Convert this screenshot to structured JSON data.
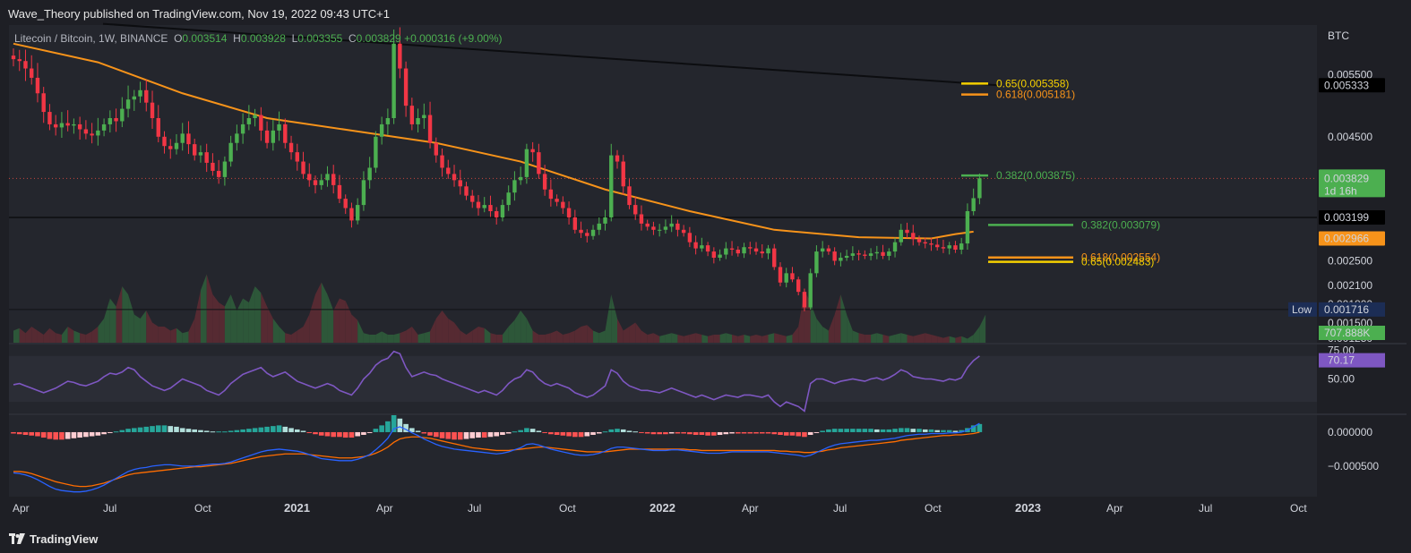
{
  "publisher_line": "Wave_Theory published on TradingView.com, Nov 19, 2022 09:43 UTC+1",
  "footer": {
    "brand": "TradingView"
  },
  "legend": {
    "symbol": "Litecoin / Bitcoin, 1W, BINANCE",
    "open_label": "O",
    "open": "0.003514",
    "high_label": "H",
    "high": "0.003928",
    "low_label": "L",
    "low": "0.003355",
    "close_label": "C",
    "close": "0.003829",
    "change": "+0.000316 (+9.00%)"
  },
  "colors": {
    "background": "#1e1f25",
    "up": "#4caf50",
    "down": "#f23645",
    "ma": "#f7931a",
    "fib_gold": "#f5d000",
    "fib_orange": "#f7931a",
    "fib_green": "#4caf50",
    "rsi": "#7e57c2",
    "macd_line": "#2962ff",
    "signal_line": "#ff6d00"
  },
  "chart_data": [
    {
      "type": "candlestick",
      "name": "price",
      "x_tick_labels": [
        "Apr",
        "Jul",
        "Oct",
        "2021",
        "Apr",
        "Jul",
        "Oct",
        "2022",
        "Apr",
        "Jul",
        "Oct",
        "2023",
        "Apr",
        "Jul",
        "Oct"
      ],
      "x_tick_bold": [
        false,
        false,
        false,
        true,
        false,
        false,
        false,
        true,
        false,
        false,
        false,
        true,
        false,
        false,
        false
      ],
      "y_unit": "BTC",
      "y_tick_labels": [
        "0.005500",
        "0.004500",
        "0.002500",
        "0.002100",
        "0.001800",
        "0.001500",
        "0.001250"
      ],
      "y_tick_values": [
        0.0055,
        0.0045,
        0.0025,
        0.0021,
        0.0018,
        0.0015,
        0.00125
      ],
      "ylim": [
        0.00118,
        0.0063
      ],
      "weekly_closes": [
        0.00575,
        0.00572,
        0.0056,
        0.00545,
        0.0052,
        0.0049,
        0.0047,
        0.00465,
        0.00472,
        0.00468,
        0.0047,
        0.00462,
        0.00455,
        0.00452,
        0.0046,
        0.0047,
        0.0048,
        0.00475,
        0.00495,
        0.0051,
        0.00515,
        0.00525,
        0.00505,
        0.0048,
        0.0045,
        0.00435,
        0.0043,
        0.0044,
        0.00455,
        0.00438,
        0.0042,
        0.00425,
        0.00408,
        0.00395,
        0.00385,
        0.0041,
        0.0044,
        0.00455,
        0.0047,
        0.0048,
        0.00485,
        0.0046,
        0.0044,
        0.0046,
        0.0047,
        0.0044,
        0.00425,
        0.0041,
        0.0039,
        0.0038,
        0.00372,
        0.0038,
        0.0039,
        0.00372,
        0.0035,
        0.00335,
        0.00315,
        0.0034,
        0.0038,
        0.004,
        0.0045,
        0.0047,
        0.0048,
        0.006,
        0.0056,
        0.005,
        0.0047,
        0.0048,
        0.00485,
        0.0044,
        0.0042,
        0.004,
        0.0039,
        0.0038,
        0.0037,
        0.00355,
        0.00345,
        0.00335,
        0.0034,
        0.0033,
        0.0032,
        0.0034,
        0.0036,
        0.0038,
        0.00385,
        0.0043,
        0.00425,
        0.0039,
        0.00365,
        0.0035,
        0.00345,
        0.00335,
        0.0032,
        0.003,
        0.00295,
        0.0029,
        0.003,
        0.0031,
        0.0032,
        0.0042,
        0.0041,
        0.0037,
        0.0034,
        0.00325,
        0.0031,
        0.00305,
        0.003,
        0.003,
        0.00305,
        0.0031,
        0.003,
        0.00295,
        0.0028,
        0.0027,
        0.00275,
        0.00265,
        0.00255,
        0.0026,
        0.0027,
        0.00268,
        0.00262,
        0.00272,
        0.0027,
        0.00265,
        0.00262,
        0.0027,
        0.0024,
        0.00215,
        0.0023,
        0.0022,
        0.002,
        0.00175,
        0.0023,
        0.00265,
        0.0027,
        0.00265,
        0.0025,
        0.00255,
        0.00258,
        0.00262,
        0.0026,
        0.00258,
        0.00262,
        0.00264,
        0.00258,
        0.00265,
        0.0028,
        0.003,
        0.00295,
        0.00285,
        0.0028,
        0.00278,
        0.00276,
        0.00272,
        0.0027,
        0.00275,
        0.00268,
        0.00278,
        0.0033,
        0.00351,
        0.00383
      ],
      "moving_average": {
        "label_value": "0.002966",
        "points": [
          [
            0,
            0.006
          ],
          [
            14,
            0.0057
          ],
          [
            28,
            0.0052
          ],
          [
            42,
            0.0048
          ],
          [
            56,
            0.0046
          ],
          [
            70,
            0.0044
          ],
          [
            84,
            0.0041
          ],
          [
            98,
            0.00365
          ],
          [
            112,
            0.0033
          ],
          [
            126,
            0.003
          ],
          [
            140,
            0.00288
          ],
          [
            152,
            0.00286
          ],
          [
            156,
            0.00293
          ],
          [
            159,
            0.00297
          ]
        ]
      },
      "long_trendline": {
        "from": [
          0,
          0.0064
        ],
        "to": [
          163,
          0.00533
        ],
        "label_value": "0.005333"
      },
      "horizontal_line": {
        "value": 0.003199,
        "label_value": "0.003199"
      },
      "current_price_line": {
        "value": 0.003829,
        "label_value": "0.003829",
        "countdown": "1d 16h"
      },
      "low_marker": {
        "label": "Low",
        "value": 0.001716,
        "label_value": "0.001716"
      },
      "fib_levels": [
        {
          "ratio": "0.65",
          "value": 0.005358,
          "text": "0.65(0.005358)",
          "color": "#f5d000"
        },
        {
          "ratio": "0.618",
          "value": 0.005181,
          "text": "0.618(0.005181)",
          "color": "#f7931a"
        },
        {
          "ratio": "0.382",
          "value": 0.003875,
          "text": "0.382(0.003875)",
          "color": "#4caf50"
        },
        {
          "ratio": "0.382",
          "value": 0.003079,
          "text": "0.382(0.003079)",
          "color": "#4caf50"
        },
        {
          "ratio": "0.618",
          "value": 0.002554,
          "text": "0.618(0.002554)",
          "color": "#f7931a"
        },
        {
          "ratio": "0.65",
          "value": 0.002483,
          "text": "0.65(0.002483)",
          "color": "#f5d000"
        }
      ],
      "grid": false
    },
    {
      "type": "area",
      "name": "volume",
      "current_label": "707.888K",
      "relative_values": [
        0.15,
        0.18,
        0.12,
        0.2,
        0.15,
        0.1,
        0.18,
        0.12,
        0.1,
        0.2,
        0.15,
        0.12,
        0.1,
        0.14,
        0.2,
        0.3,
        0.55,
        0.45,
        0.7,
        0.6,
        0.35,
        0.3,
        0.4,
        0.25,
        0.2,
        0.2,
        0.15,
        0.18,
        0.12,
        0.14,
        0.3,
        0.65,
        0.85,
        0.6,
        0.5,
        0.45,
        0.6,
        0.4,
        0.55,
        0.5,
        0.7,
        0.62,
        0.45,
        0.3,
        0.2,
        0.12,
        0.1,
        0.15,
        0.2,
        0.35,
        0.6,
        0.75,
        0.6,
        0.4,
        0.55,
        0.52,
        0.35,
        0.28,
        0.12,
        0.1,
        0.1,
        0.14,
        0.1,
        0.1,
        0.12,
        0.15,
        0.2,
        0.1,
        0.12,
        0.14,
        0.3,
        0.4,
        0.3,
        0.25,
        0.15,
        0.1,
        0.15,
        0.2,
        0.18,
        0.12,
        0.1,
        0.1,
        0.2,
        0.28,
        0.4,
        0.3,
        0.15,
        0.1,
        0.1,
        0.12,
        0.15,
        0.1,
        0.12,
        0.15,
        0.2,
        0.22,
        0.15,
        0.12,
        0.15,
        0.6,
        0.3,
        0.15,
        0.2,
        0.25,
        0.15,
        0.1,
        0.12,
        0.08,
        0.1,
        0.12,
        0.1,
        0.08,
        0.1,
        0.12,
        0.1,
        0.08,
        0.1,
        0.1,
        0.12,
        0.1,
        0.08,
        0.1,
        0.08,
        0.1,
        0.08,
        0.1,
        0.12,
        0.1,
        0.08,
        0.1,
        0.2,
        0.65,
        0.5,
        0.3,
        0.2,
        0.15,
        0.35,
        0.6,
        0.35,
        0.15,
        0.12,
        0.1,
        0.1,
        0.12,
        0.1,
        0.08,
        0.1,
        0.12,
        0.1,
        0.08,
        0.1,
        0.12,
        0.1,
        0.08,
        0.06,
        0.08,
        0.06,
        0.08,
        0.05,
        0.1,
        0.2,
        0.35
      ]
    },
    {
      "type": "line",
      "name": "rsi",
      "y_tick_labels": [
        "75.00",
        "50.00"
      ],
      "y_tick_values": [
        75,
        50
      ],
      "ylim": [
        20,
        80
      ],
      "current_label": "70.17",
      "values": [
        45,
        46,
        44,
        42,
        40,
        38,
        40,
        42,
        45,
        48,
        47,
        45,
        44,
        46,
        48,
        52,
        55,
        54,
        56,
        60,
        58,
        52,
        48,
        44,
        42,
        40,
        42,
        46,
        50,
        48,
        46,
        44,
        40,
        38,
        36,
        40,
        46,
        50,
        54,
        56,
        58,
        60,
        55,
        52,
        54,
        56,
        52,
        48,
        46,
        44,
        42,
        44,
        46,
        44,
        40,
        38,
        36,
        42,
        50,
        55,
        62,
        66,
        68,
        74,
        72,
        60,
        52,
        54,
        56,
        54,
        53,
        50,
        48,
        46,
        44,
        42,
        40,
        38,
        40,
        38,
        36,
        40,
        46,
        50,
        52,
        58,
        56,
        50,
        46,
        44,
        46,
        44,
        42,
        38,
        36,
        34,
        36,
        40,
        44,
        58,
        55,
        48,
        44,
        42,
        40,
        40,
        39,
        38,
        40,
        42,
        40,
        38,
        36,
        34,
        36,
        34,
        32,
        34,
        36,
        35,
        34,
        36,
        36,
        35,
        34,
        36,
        30,
        26,
        30,
        28,
        26,
        22,
        46,
        50,
        50,
        48,
        46,
        48,
        49,
        50,
        49,
        48,
        50,
        51,
        49,
        51,
        54,
        58,
        56,
        52,
        51,
        50,
        50,
        49,
        48,
        50,
        49,
        51,
        60,
        66,
        70
      ]
    },
    {
      "type": "bar+line",
      "name": "macd",
      "y_tick_labels": [
        "0.000000",
        "−0.000500"
      ],
      "y_tick_values": [
        0,
        -0.0005
      ],
      "ylim": [
        -0.00095,
        0.00025
      ],
      "histogram": [
        -2e-05,
        -3e-05,
        -4e-05,
        -5e-05,
        -6e-05,
        -8e-05,
        -0.0001,
        -0.00011,
        -0.00011,
        -0.0001,
        -9e-05,
        -8e-05,
        -7e-05,
        -6e-05,
        -5e-05,
        -3e-05,
        -1e-05,
        1e-05,
        3e-05,
        5e-05,
        6e-05,
        7e-05,
        8e-05,
        9e-05,
        0.0001,
        0.0001,
        9e-05,
        8e-05,
        6e-05,
        5e-05,
        4e-05,
        3e-05,
        2e-05,
        1e-05,
        1e-05,
        1e-05,
        2e-05,
        3e-05,
        4e-05,
        5e-05,
        6e-05,
        7e-05,
        8e-05,
        9e-05,
        0.0001,
        8e-05,
        6e-05,
        4e-05,
        2e-05,
        -1e-05,
        -3e-05,
        -5e-05,
        -6e-05,
        -7e-05,
        -7e-05,
        -8e-05,
        -8e-05,
        -6e-05,
        -4e-05,
        -1e-05,
        5e-05,
        0.0001,
        0.00016,
        0.00025,
        0.0002,
        0.00012,
        6e-05,
        2e-05,
        -2e-05,
        -5e-05,
        -7e-05,
        -9e-05,
        -0.0001,
        -0.00011,
        -0.00011,
        -0.0001,
        -9e-05,
        -8e-05,
        -8e-05,
        -7e-05,
        -6e-05,
        -4e-05,
        -2e-05,
        1e-05,
        3e-05,
        6e-05,
        5e-05,
        2e-05,
        -1e-05,
        -3e-05,
        -4e-05,
        -5e-05,
        -6e-05,
        -7e-05,
        -7e-05,
        -6e-05,
        -4e-05,
        -2e-05,
        1e-05,
        4e-05,
        5e-05,
        4e-05,
        2e-05,
        1e-05,
        -1e-05,
        -2e-05,
        -3e-05,
        -3e-05,
        -3e-05,
        -2e-05,
        -2e-05,
        -2e-05,
        -3e-05,
        -4e-05,
        -4e-05,
        -5e-05,
        -5e-05,
        -4e-05,
        -3e-05,
        -2e-05,
        -2e-05,
        -2e-05,
        -2e-05,
        -2e-05,
        -2e-05,
        -2e-05,
        -3e-05,
        -4e-05,
        -5e-05,
        -5e-05,
        -6e-05,
        -7e-05,
        -4e-05,
        -1e-05,
        2e-05,
        4e-05,
        5e-05,
        5e-05,
        5e-05,
        5e-05,
        5e-05,
        5e-05,
        5e-05,
        4e-05,
        4e-05,
        4e-05,
        5e-05,
        6e-05,
        6e-05,
        5e-05,
        5e-05,
        4e-05,
        4e-05,
        3e-05,
        3e-05,
        3e-05,
        2e-05,
        3e-05,
        6e-05,
        0.0001,
        0.00012
      ],
      "macd_line": [
        -0.0006,
        -0.00061,
        -0.00063,
        -0.00066,
        -0.0007,
        -0.00075,
        -0.0008,
        -0.00084,
        -0.00086,
        -0.00087,
        -0.00088,
        -0.00088,
        -0.00087,
        -0.00085,
        -0.00082,
        -0.00078,
        -0.00073,
        -0.00068,
        -0.00063,
        -0.00058,
        -0.00055,
        -0.00053,
        -0.00052,
        -0.0005,
        -0.00049,
        -0.00048,
        -0.00048,
        -0.00049,
        -0.0005,
        -0.0005,
        -0.0005,
        -0.00049,
        -0.00048,
        -0.00047,
        -0.00047,
        -0.00046,
        -0.00044,
        -0.00041,
        -0.00038,
        -0.00035,
        -0.00032,
        -0.00029,
        -0.00027,
        -0.00026,
        -0.00025,
        -0.00026,
        -0.00027,
        -0.00028,
        -0.0003,
        -0.00033,
        -0.00036,
        -0.00039,
        -0.0004,
        -0.00041,
        -0.00042,
        -0.00042,
        -0.00042,
        -0.0004,
        -0.00037,
        -0.00033,
        -0.00026,
        -0.00018,
        -9e-05,
        5e-05,
        8e-05,
        4e-05,
        -1e-05,
        -5e-05,
        -0.0001,
        -0.00014,
        -0.00018,
        -0.00021,
        -0.00023,
        -0.00025,
        -0.00026,
        -0.00027,
        -0.00028,
        -0.00029,
        -0.0003,
        -0.00031,
        -0.00032,
        -0.00031,
        -0.00029,
        -0.00026,
        -0.00023,
        -0.00018,
        -0.00017,
        -0.00019,
        -0.00022,
        -0.00025,
        -0.00027,
        -0.00029,
        -0.00031,
        -0.00033,
        -0.00034,
        -0.00034,
        -0.00033,
        -0.00031,
        -0.00028,
        -0.00024,
        -0.00022,
        -0.00022,
        -0.00023,
        -0.00024,
        -0.00025,
        -0.00026,
        -0.00027,
        -0.00027,
        -0.00027,
        -0.00026,
        -0.00026,
        -0.00027,
        -0.00028,
        -0.00029,
        -0.0003,
        -0.00031,
        -0.00031,
        -0.00031,
        -0.0003,
        -0.00029,
        -0.00029,
        -0.00029,
        -0.00029,
        -0.00029,
        -0.00029,
        -0.00029,
        -0.0003,
        -0.00031,
        -0.00032,
        -0.00033,
        -0.00034,
        -0.00036,
        -0.00034,
        -0.0003,
        -0.00026,
        -0.00022,
        -0.00019,
        -0.00017,
        -0.00016,
        -0.00015,
        -0.00014,
        -0.00013,
        -0.00012,
        -0.00012,
        -0.00011,
        -0.0001,
        -9e-05,
        -7e-05,
        -5e-05,
        -4e-05,
        -3e-05,
        -3e-05,
        -2e-05,
        -2e-05,
        -2e-05,
        -1e-05,
        -1e-05,
        0.0,
        3e-05,
        8e-05,
        0.00013
      ],
      "signal_line": [
        -0.00058,
        -0.00058,
        -0.00059,
        -0.00061,
        -0.00064,
        -0.00067,
        -0.0007,
        -0.00073,
        -0.00075,
        -0.00077,
        -0.00079,
        -0.0008,
        -0.0008,
        -0.00079,
        -0.00077,
        -0.00075,
        -0.00072,
        -0.00069,
        -0.00066,
        -0.00063,
        -0.00061,
        -0.0006,
        -0.00059,
        -0.00058,
        -0.00057,
        -0.00056,
        -0.00055,
        -0.00054,
        -0.00053,
        -0.00052,
        -0.00051,
        -0.00051,
        -0.0005,
        -0.00049,
        -0.00048,
        -0.00047,
        -0.00046,
        -0.00044,
        -0.00042,
        -0.0004,
        -0.00038,
        -0.00036,
        -0.00035,
        -0.00034,
        -0.00033,
        -0.00032,
        -0.00032,
        -0.00032,
        -0.00032,
        -0.00033,
        -0.00034,
        -0.00035,
        -0.00036,
        -0.00037,
        -0.00038,
        -0.00038,
        -0.00038,
        -0.00037,
        -0.00036,
        -0.00034,
        -0.00031,
        -0.00027,
        -0.00022,
        -0.00015,
        -0.0001,
        -8e-05,
        -7e-05,
        -7e-05,
        -8e-05,
        -9e-05,
        -0.00011,
        -0.00013,
        -0.00015,
        -0.00017,
        -0.00019,
        -0.00021,
        -0.00023,
        -0.00024,
        -0.00025,
        -0.00026,
        -0.00027,
        -0.00027,
        -0.00027,
        -0.00026,
        -0.00025,
        -0.00024,
        -0.00023,
        -0.00022,
        -0.00022,
        -0.00023,
        -0.00024,
        -0.00025,
        -0.00026,
        -0.00027,
        -0.00028,
        -0.00029,
        -0.00029,
        -0.00029,
        -0.00029,
        -0.00028,
        -0.00027,
        -0.00026,
        -0.00025,
        -0.00025,
        -0.00025,
        -0.00025,
        -0.00025,
        -0.00025,
        -0.00025,
        -0.00025,
        -0.00025,
        -0.00025,
        -0.00026,
        -0.00026,
        -0.00027,
        -0.00027,
        -0.00027,
        -0.00027,
        -0.00027,
        -0.00027,
        -0.00027,
        -0.00027,
        -0.00027,
        -0.00027,
        -0.00027,
        -0.00027,
        -0.00027,
        -0.00028,
        -0.00028,
        -0.00029,
        -0.00029,
        -0.0003,
        -0.0003,
        -0.00029,
        -0.00028,
        -0.00026,
        -0.00025,
        -0.00023,
        -0.00022,
        -0.00021,
        -0.0002,
        -0.00019,
        -0.00018,
        -0.00017,
        -0.00016,
        -0.00015,
        -0.00014,
        -0.00012,
        -0.00011,
        -0.0001,
        -9e-05,
        -8e-05,
        -7e-05,
        -6e-05,
        -5e-05,
        -5e-05,
        -4e-05,
        -4e-05,
        -3e-05,
        -2e-05,
        0.0
      ]
    }
  ]
}
